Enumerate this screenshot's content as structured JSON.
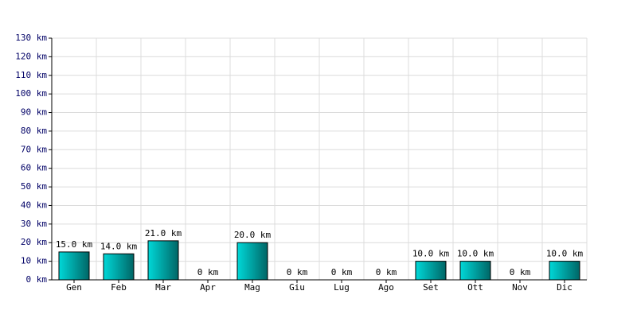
{
  "chart_data": {
    "type": "bar",
    "categories": [
      "Gen",
      "Feb",
      "Mar",
      "Apr",
      "Mag",
      "Giu",
      "Lug",
      "Ago",
      "Set",
      "Ott",
      "Nov",
      "Dic"
    ],
    "values": [
      15,
      14,
      21,
      0,
      20,
      0,
      0,
      0,
      10,
      10,
      0,
      10
    ],
    "value_labels": [
      "15.0 km",
      "14.0 km",
      "21.0 km",
      "0 km",
      "20.0 km",
      "0 km",
      "0 km",
      "0 km",
      "10.0 km",
      "10.0 km",
      "0 km",
      "10.0 km"
    ],
    "color": "#00d8d8",
    "ylim": [
      0,
      130
    ],
    "yticks": [
      {
        "value": 0,
        "label": "0 km"
      },
      {
        "value": 10,
        "label": "10 km"
      },
      {
        "value": 20,
        "label": "20 km"
      },
      {
        "value": 30,
        "label": "30 km"
      },
      {
        "value": 40,
        "label": "40 km"
      },
      {
        "value": 50,
        "label": "50 km"
      },
      {
        "value": 60,
        "label": "60 km"
      },
      {
        "value": 70,
        "label": "70 km"
      },
      {
        "value": 80,
        "label": "80 km"
      },
      {
        "value": 90,
        "label": "90 km"
      },
      {
        "value": 100,
        "label": "100 km"
      },
      {
        "value": 110,
        "label": "110 km"
      },
      {
        "value": 120,
        "label": "120 km"
      },
      {
        "value": 130,
        "label": "130 km"
      }
    ],
    "grid": true
  }
}
